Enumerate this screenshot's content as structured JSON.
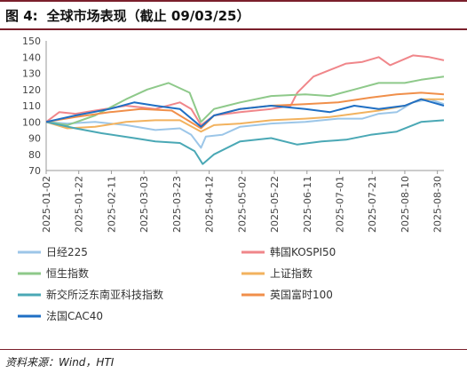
{
  "figure": {
    "label": "图 4:",
    "title": "全球市场表现（截止 09/03/25）",
    "source": "资料来源：Wind，HTI"
  },
  "chart_data": {
    "type": "line",
    "title": "全球市场表现（截止 09/03/25）",
    "xlabel": "",
    "ylabel": "",
    "ylim": [
      70,
      150
    ],
    "yticks": [
      70,
      80,
      90,
      100,
      110,
      120,
      130,
      140,
      150
    ],
    "x_range": [
      "2025-01-02",
      "2025-09-03"
    ],
    "x_tick_labels": [
      "2025-01-02",
      "2025-01-22",
      "2025-02-11",
      "2025-03-03",
      "2025-03-23",
      "2025-04-12",
      "2025-05-02",
      "2025-05-22",
      "2025-06-11",
      "2025-07-01",
      "2025-07-21",
      "2025-08-10",
      "2025-08-30"
    ],
    "grid": false,
    "legend_position": "bottom",
    "series": [
      {
        "name": "日经225",
        "color": "#9cc6e8",
        "points": [
          [
            "2025-01-02",
            100
          ],
          [
            "2025-01-15",
            99
          ],
          [
            "2025-02-01",
            100
          ],
          [
            "2025-02-20",
            98
          ],
          [
            "2025-03-10",
            95
          ],
          [
            "2025-03-25",
            96
          ],
          [
            "2025-04-01",
            92
          ],
          [
            "2025-04-07",
            84
          ],
          [
            "2025-04-10",
            91
          ],
          [
            "2025-04-20",
            92
          ],
          [
            "2025-05-01",
            97
          ],
          [
            "2025-05-20",
            99
          ],
          [
            "2025-06-10",
            100
          ],
          [
            "2025-06-30",
            102
          ],
          [
            "2025-07-15",
            102
          ],
          [
            "2025-07-25",
            105
          ],
          [
            "2025-08-05",
            106
          ],
          [
            "2025-08-15",
            112
          ],
          [
            "2025-08-25",
            114
          ],
          [
            "2025-09-03",
            111
          ]
        ]
      },
      {
        "name": "韩国KOSPI50",
        "color": "#f0868a",
        "points": [
          [
            "2025-01-02",
            100
          ],
          [
            "2025-01-10",
            106
          ],
          [
            "2025-01-20",
            105
          ],
          [
            "2025-02-01",
            107
          ],
          [
            "2025-02-20",
            110
          ],
          [
            "2025-03-10",
            108
          ],
          [
            "2025-03-25",
            112
          ],
          [
            "2025-04-01",
            108
          ],
          [
            "2025-04-07",
            98
          ],
          [
            "2025-04-15",
            104
          ],
          [
            "2025-05-01",
            106
          ],
          [
            "2025-05-20",
            108
          ],
          [
            "2025-06-01",
            110
          ],
          [
            "2025-06-05",
            118
          ],
          [
            "2025-06-15",
            128
          ],
          [
            "2025-06-25",
            132
          ],
          [
            "2025-07-05",
            136
          ],
          [
            "2025-07-15",
            137
          ],
          [
            "2025-07-25",
            140
          ],
          [
            "2025-08-01",
            135
          ],
          [
            "2025-08-15",
            141
          ],
          [
            "2025-08-25",
            140
          ],
          [
            "2025-09-03",
            138
          ]
        ]
      },
      {
        "name": "恒生指数",
        "color": "#8ec98a",
        "points": [
          [
            "2025-01-02",
            100
          ],
          [
            "2025-01-15",
            98
          ],
          [
            "2025-02-01",
            104
          ],
          [
            "2025-02-20",
            114
          ],
          [
            "2025-03-05",
            120
          ],
          [
            "2025-03-18",
            124
          ],
          [
            "2025-03-31",
            118
          ],
          [
            "2025-04-07",
            100
          ],
          [
            "2025-04-15",
            108
          ],
          [
            "2025-05-01",
            112
          ],
          [
            "2025-05-20",
            116
          ],
          [
            "2025-06-10",
            117
          ],
          [
            "2025-06-25",
            116
          ],
          [
            "2025-07-10",
            120
          ],
          [
            "2025-07-25",
            124
          ],
          [
            "2025-08-10",
            124
          ],
          [
            "2025-08-20",
            126
          ],
          [
            "2025-09-03",
            128
          ]
        ]
      },
      {
        "name": "上证指数",
        "color": "#f2b25e",
        "points": [
          [
            "2025-01-02",
            100
          ],
          [
            "2025-01-15",
            96
          ],
          [
            "2025-02-01",
            97
          ],
          [
            "2025-02-20",
            100
          ],
          [
            "2025-03-10",
            101
          ],
          [
            "2025-03-25",
            101
          ],
          [
            "2025-04-07",
            94
          ],
          [
            "2025-04-15",
            98
          ],
          [
            "2025-05-01",
            99
          ],
          [
            "2025-05-20",
            101
          ],
          [
            "2025-06-10",
            102
          ],
          [
            "2025-06-25",
            103
          ],
          [
            "2025-07-10",
            105
          ],
          [
            "2025-07-25",
            107
          ],
          [
            "2025-08-10",
            110
          ],
          [
            "2025-08-20",
            114
          ],
          [
            "2025-09-03",
            114
          ]
        ]
      },
      {
        "name": "新交所泛东南亚科技指数",
        "color": "#4aa8b5",
        "points": [
          [
            "2025-01-02",
            100
          ],
          [
            "2025-01-20",
            96
          ],
          [
            "2025-02-05",
            93
          ],
          [
            "2025-02-25",
            90
          ],
          [
            "2025-03-10",
            88
          ],
          [
            "2025-03-25",
            87
          ],
          [
            "2025-04-03",
            82
          ],
          [
            "2025-04-08",
            74
          ],
          [
            "2025-04-15",
            80
          ],
          [
            "2025-05-01",
            88
          ],
          [
            "2025-05-20",
            90
          ],
          [
            "2025-06-05",
            86
          ],
          [
            "2025-06-20",
            88
          ],
          [
            "2025-07-05",
            89
          ],
          [
            "2025-07-20",
            92
          ],
          [
            "2025-08-05",
            94
          ],
          [
            "2025-08-20",
            100
          ],
          [
            "2025-09-03",
            101
          ]
        ]
      },
      {
        "name": "英国富时100",
        "color": "#f08f4a",
        "points": [
          [
            "2025-01-02",
            100
          ],
          [
            "2025-01-20",
            103
          ],
          [
            "2025-02-10",
            106
          ],
          [
            "2025-03-01",
            108
          ],
          [
            "2025-03-20",
            107
          ],
          [
            "2025-04-07",
            96
          ],
          [
            "2025-04-15",
            104
          ],
          [
            "2025-05-01",
            108
          ],
          [
            "2025-05-20",
            110
          ],
          [
            "2025-06-10",
            111
          ],
          [
            "2025-06-30",
            112
          ],
          [
            "2025-07-20",
            115
          ],
          [
            "2025-08-05",
            117
          ],
          [
            "2025-08-20",
            118
          ],
          [
            "2025-09-03",
            117
          ]
        ]
      },
      {
        "name": "法国CAC40",
        "color": "#1f6fc4",
        "points": [
          [
            "2025-01-02",
            100
          ],
          [
            "2025-01-20",
            104
          ],
          [
            "2025-02-10",
            108
          ],
          [
            "2025-02-25",
            112
          ],
          [
            "2025-03-10",
            110
          ],
          [
            "2025-03-25",
            108
          ],
          [
            "2025-04-07",
            97
          ],
          [
            "2025-04-15",
            104
          ],
          [
            "2025-05-01",
            108
          ],
          [
            "2025-05-20",
            110
          ],
          [
            "2025-06-10",
            108
          ],
          [
            "2025-06-25",
            106
          ],
          [
            "2025-07-10",
            110
          ],
          [
            "2025-07-25",
            108
          ],
          [
            "2025-08-10",
            110
          ],
          [
            "2025-08-20",
            114
          ],
          [
            "2025-09-03",
            110
          ]
        ]
      }
    ]
  }
}
